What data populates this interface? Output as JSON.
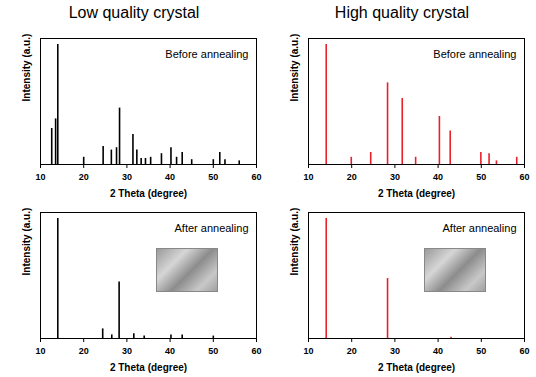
{
  "columns": [
    "Low quality crystal",
    "High quality crystal"
  ],
  "chart_data": [
    {
      "type": "stem",
      "annotation": "Before annealing",
      "color": "#000000",
      "x": [
        12.6,
        13.5,
        14.0,
        20.0,
        24.5,
        26.4,
        27.6,
        28.3,
        31.4,
        32.3,
        33.3,
        34.3,
        35.5,
        38.0,
        40.2,
        41.5,
        42.8,
        45.0,
        50.0,
        51.5,
        52.7,
        56.0
      ],
      "values": [
        30,
        38,
        100,
        6,
        15,
        12,
        14,
        47,
        25,
        12,
        5,
        5,
        6,
        9,
        14,
        6,
        10,
        4,
        4,
        10,
        4,
        3
      ],
      "xlabel": "2 Theta (degree)",
      "ylabel": "Intensity (a.u.)",
      "xlim": [
        10,
        60
      ],
      "xticks": [
        10,
        20,
        30,
        40,
        50,
        60
      ],
      "ylim": [
        0,
        105
      ],
      "yticks": [],
      "tick_labels": "x"
    },
    {
      "type": "stem",
      "annotation": "Before annealing",
      "color": "#e8202a",
      "x": [
        14.1,
        19.9,
        24.4,
        28.3,
        31.7,
        34.8,
        40.3,
        42.8,
        49.9,
        51.8,
        53.5,
        58.2
      ],
      "values": [
        100,
        6,
        10,
        68,
        55,
        6,
        40,
        28,
        10,
        9,
        3,
        6
      ],
      "xlabel": "2 Theta (degree)",
      "ylabel": "Intensity (a.u.)",
      "xlim": [
        10,
        60
      ],
      "xticks": [
        10,
        20,
        30,
        40,
        50,
        60
      ],
      "ylim": [
        0,
        105
      ],
      "yticks": [],
      "tick_labels": "x"
    },
    {
      "type": "stem",
      "annotation": "After annealing",
      "color": "#000000",
      "x": [
        14.0,
        24.4,
        26.5,
        28.2,
        31.6,
        34.0,
        40.2,
        42.8,
        50.0
      ],
      "values": [
        100,
        8,
        3,
        47,
        4,
        2,
        3,
        3,
        2
      ],
      "xlabel": "2 Theta (degree)",
      "ylabel": "Intensity (a.u.)",
      "xlim": [
        10,
        60
      ],
      "xticks": [
        10,
        20,
        30,
        40,
        50,
        60
      ],
      "ylim": [
        0,
        105
      ],
      "yticks": [],
      "tick_labels": "x"
    },
    {
      "type": "stem",
      "annotation": "After annealing",
      "color": "#e8202a",
      "x": [
        14.1,
        28.3,
        43.0
      ],
      "values": [
        100,
        50,
        1
      ],
      "xlabel": "2 Theta (degree)",
      "ylabel": "Intensity (a.u.)",
      "xlim": [
        10,
        60
      ],
      "xticks": [
        10,
        20,
        30,
        40,
        50,
        60
      ],
      "ylim": [
        0,
        105
      ],
      "yticks": [],
      "tick_labels": "x"
    }
  ]
}
